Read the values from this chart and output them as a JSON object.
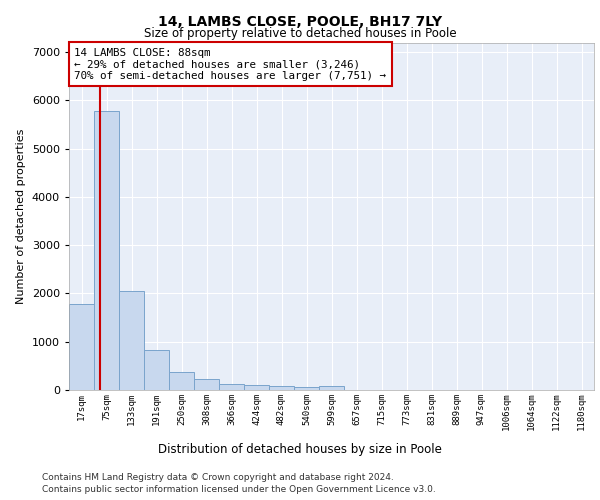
{
  "title1": "14, LAMBS CLOSE, POOLE, BH17 7LY",
  "title2": "Size of property relative to detached houses in Poole",
  "xlabel": "Distribution of detached houses by size in Poole",
  "ylabel": "Number of detached properties",
  "categories": [
    "17sqm",
    "75sqm",
    "133sqm",
    "191sqm",
    "250sqm",
    "308sqm",
    "366sqm",
    "424sqm",
    "482sqm",
    "540sqm",
    "599sqm",
    "657sqm",
    "715sqm",
    "773sqm",
    "831sqm",
    "889sqm",
    "947sqm",
    "1006sqm",
    "1064sqm",
    "1122sqm",
    "1180sqm"
  ],
  "values": [
    1780,
    5780,
    2060,
    820,
    380,
    220,
    115,
    110,
    75,
    60,
    75,
    0,
    0,
    0,
    0,
    0,
    0,
    0,
    0,
    0,
    0
  ],
  "bar_color": "#c8d8ee",
  "bar_edge_color": "#7aa4cc",
  "property_line_color": "#cc0000",
  "annotation_text": "14 LAMBS CLOSE: 88sqm\n← 29% of detached houses are smaller (3,246)\n70% of semi-detached houses are larger (7,751) →",
  "annotation_box_facecolor": "#ffffff",
  "annotation_box_edgecolor": "#cc0000",
  "ylim": [
    0,
    7200
  ],
  "yticks": [
    0,
    1000,
    2000,
    3000,
    4000,
    5000,
    6000,
    7000
  ],
  "footer1": "Contains HM Land Registry data © Crown copyright and database right 2024.",
  "footer2": "Contains public sector information licensed under the Open Government Licence v3.0.",
  "fig_facecolor": "#ffffff",
  "plot_facecolor": "#e8eef8"
}
